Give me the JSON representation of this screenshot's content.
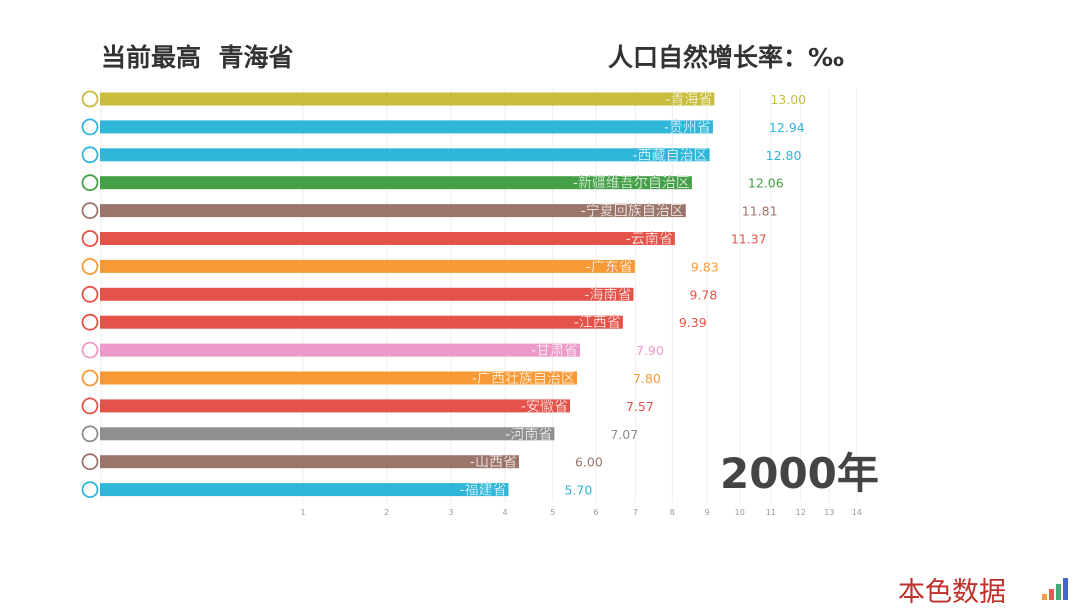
{
  "header": {
    "leader_label": "当前最高",
    "leader_name": "青海省",
    "metric": "人口自然增长率：‰"
  },
  "year": "2000年",
  "brand": "本色数据",
  "chart_data": {
    "type": "bar",
    "orientation": "horizontal",
    "scale": "sqrt",
    "xlim": [
      0,
      14
    ],
    "grid": true,
    "ticks": [
      "1",
      "2",
      "3",
      "4",
      "5",
      "6",
      "7",
      "8",
      "9",
      "10",
      "11",
      "12",
      "13",
      "14"
    ],
    "categories": [
      "青海省",
      "贵州省",
      "西藏自治区",
      "新疆维吾尔自治区",
      "宁夏回族自治区",
      "云南省",
      "广东省",
      "海南省",
      "江西省",
      "甘肃省",
      "广西壮族自治区",
      "安徽省",
      "河南省",
      "山西省",
      "福建省"
    ],
    "values": [
      13.0,
      12.94,
      12.8,
      12.06,
      11.81,
      11.37,
      9.83,
      9.78,
      9.39,
      7.9,
      7.8,
      7.57,
      7.07,
      6.0,
      5.7
    ],
    "value_labels": [
      "13.00",
      "12.94",
      "12.80",
      "12.06",
      "11.81",
      "11.37",
      "9.83",
      "9.78",
      "9.39",
      "7.90",
      "7.80",
      "7.57",
      "7.07",
      "6.00",
      "5.70"
    ],
    "colors": [
      "#c8bd3c",
      "#2fb6d9",
      "#2fb6d9",
      "#45a047",
      "#9c756a",
      "#e4534a",
      "#f79a35",
      "#e4534a",
      "#e4534a",
      "#ec9ac8",
      "#f79a35",
      "#e4534a",
      "#8f8f8f",
      "#9c756a",
      "#2fb6d9"
    ]
  }
}
